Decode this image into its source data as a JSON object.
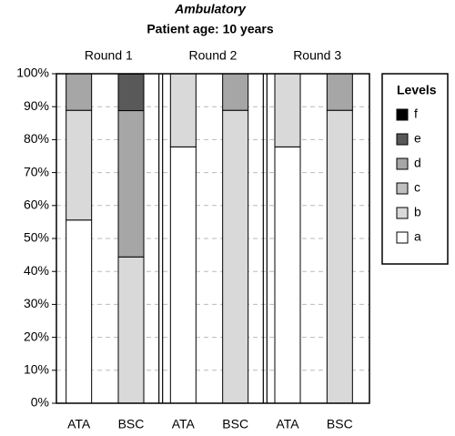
{
  "chart_data": {
    "type": "stacked_bar",
    "title": "Ambulatory",
    "subtitle": "Patient age: 10 years",
    "groups": [
      "Round 1",
      "Round 2",
      "Round 3"
    ],
    "categories": [
      "ATA",
      "BSC",
      "ATA",
      "BSC",
      "ATA",
      "BSC"
    ],
    "legend_title": "Levels",
    "series": [
      {
        "name": "a",
        "color": "#ffffff",
        "values": [
          55.6,
          0,
          77.8,
          0,
          77.8,
          0
        ]
      },
      {
        "name": "b",
        "color": "#d9d9d9",
        "values": [
          33.3,
          44.4,
          22.2,
          88.9,
          22.2,
          88.9
        ]
      },
      {
        "name": "c",
        "color": "#bfbfbf",
        "values": [
          0,
          0,
          0,
          0,
          0,
          0
        ]
      },
      {
        "name": "d",
        "color": "#a6a6a6",
        "values": [
          11.1,
          44.4,
          0,
          11.1,
          0,
          11.1
        ]
      },
      {
        "name": "e",
        "color": "#595959",
        "values": [
          0,
          11.1,
          0,
          0,
          0,
          0
        ]
      },
      {
        "name": "f",
        "color": "#000000",
        "values": [
          0,
          0,
          0,
          0,
          0,
          0
        ]
      }
    ],
    "ylim": [
      0,
      100
    ],
    "yticks": [
      {
        "value": 0,
        "label": "0%"
      },
      {
        "value": 10,
        "label": "10%"
      },
      {
        "value": 20,
        "label": "20%"
      },
      {
        "value": 30,
        "label": "30%"
      },
      {
        "value": 40,
        "label": "40%"
      },
      {
        "value": 50,
        "label": "50%"
      },
      {
        "value": 60,
        "label": "60%"
      },
      {
        "value": 70,
        "label": "70%"
      },
      {
        "value": 80,
        "label": "80%"
      },
      {
        "value": 90,
        "label": "90%"
      },
      {
        "value": 100,
        "label": "100%"
      }
    ],
    "grid": true
  }
}
